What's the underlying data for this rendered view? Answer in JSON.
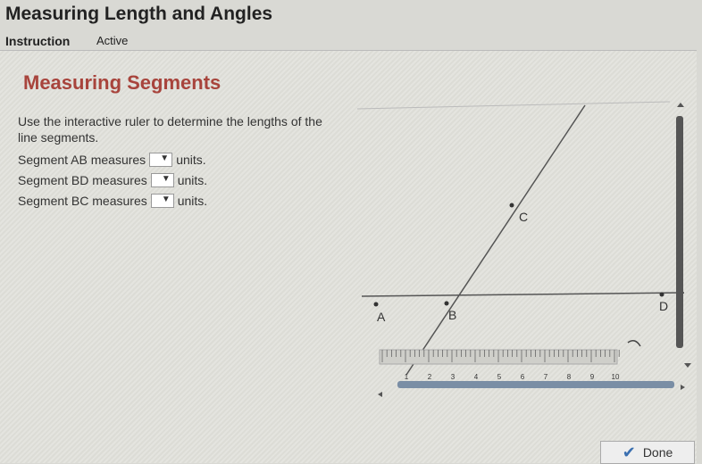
{
  "header": {
    "title": "Measuring Length and Angles",
    "tabs": [
      "Instruction",
      "Active"
    ]
  },
  "panel": {
    "title": "Measuring Segments",
    "instructions": "Use the interactive ruler to determine the lengths of the line segments.",
    "questions": [
      {
        "prefix": "Segment AB measures",
        "suffix": "units."
      },
      {
        "prefix": "Segment BD measures",
        "suffix": "units."
      },
      {
        "prefix": "Segment BC measures",
        "suffix": "units."
      }
    ]
  },
  "diagram": {
    "points": [
      "A",
      "B",
      "C",
      "D"
    ]
  },
  "ruler": {
    "labels": [
      1,
      2,
      3,
      4,
      5,
      6,
      7,
      8,
      9,
      10
    ]
  },
  "footer": {
    "button": "Done"
  }
}
